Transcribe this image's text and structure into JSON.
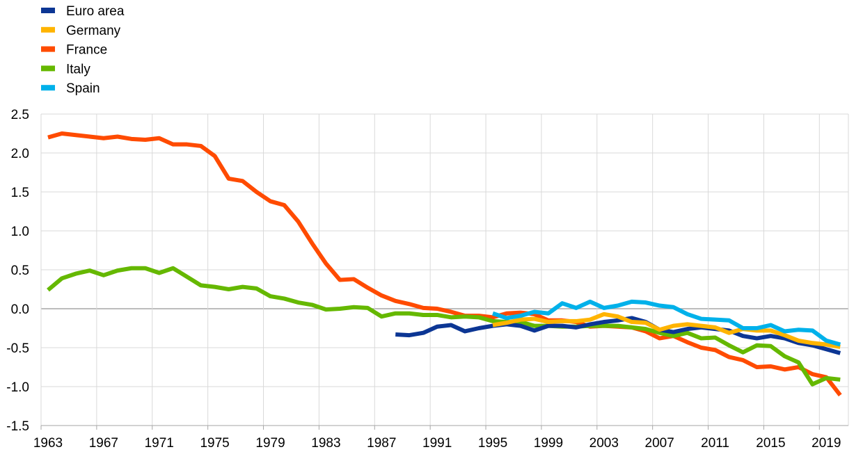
{
  "chart_data": {
    "type": "line",
    "title": "",
    "xlabel": "",
    "ylabel": "",
    "xlim": [
      1963,
      2020
    ],
    "ylim": [
      -1.5,
      2.5
    ],
    "x_ticks": [
      "1963",
      "1967",
      "1971",
      "1975",
      "1979",
      "1983",
      "1987",
      "1991",
      "1995",
      "1999",
      "2003",
      "2007",
      "2011",
      "2015",
      "2019"
    ],
    "y_ticks": [
      "2.5",
      "2.0",
      "1.5",
      "1.0",
      "0.5",
      "0.0",
      "-0.5",
      "-1.0",
      "-1.5"
    ],
    "grid": "vertical and horizontal",
    "legend_position": "top-left",
    "series": [
      {
        "name": "Euro area",
        "color": "#0c3694",
        "x": [
          1988,
          1989,
          1990,
          1991,
          1992,
          1993,
          1994,
          1995,
          1996,
          1997,
          1998,
          1999,
          2000,
          2001,
          2002,
          2003,
          2004,
          2005,
          2006,
          2007,
          2008,
          2009,
          2010,
          2011,
          2012,
          2013,
          2014,
          2015,
          2016,
          2017,
          2018,
          2019,
          2020
        ],
        "values": [
          -0.33,
          -0.34,
          -0.31,
          -0.23,
          -0.21,
          -0.29,
          -0.25,
          -0.22,
          -0.2,
          -0.22,
          -0.28,
          -0.22,
          -0.22,
          -0.24,
          -0.2,
          -0.17,
          -0.15,
          -0.12,
          -0.17,
          -0.27,
          -0.3,
          -0.26,
          -0.24,
          -0.26,
          -0.28,
          -0.35,
          -0.38,
          -0.35,
          -0.38,
          -0.44,
          -0.47,
          -0.52,
          -0.57
        ]
      },
      {
        "name": "Germany",
        "color": "#ffb400",
        "x": [
          1995,
          1996,
          1997,
          1998,
          1999,
          2000,
          2001,
          2002,
          2003,
          2004,
          2005,
          2006,
          2007,
          2008,
          2009,
          2010,
          2011,
          2012,
          2013,
          2014,
          2015,
          2016,
          2017,
          2018,
          2019,
          2020
        ],
        "values": [
          -0.21,
          -0.18,
          -0.14,
          -0.13,
          -0.17,
          -0.16,
          -0.16,
          -0.14,
          -0.07,
          -0.1,
          -0.17,
          -0.18,
          -0.27,
          -0.22,
          -0.2,
          -0.22,
          -0.24,
          -0.31,
          -0.26,
          -0.28,
          -0.28,
          -0.34,
          -0.41,
          -0.44,
          -0.46,
          -0.49
        ]
      },
      {
        "name": "France",
        "color": "#ff4b00",
        "x": [
          1963,
          1964,
          1965,
          1966,
          1967,
          1968,
          1969,
          1970,
          1971,
          1972,
          1973,
          1974,
          1975,
          1976,
          1977,
          1978,
          1979,
          1980,
          1981,
          1982,
          1983,
          1984,
          1985,
          1986,
          1987,
          1988,
          1989,
          1990,
          1991,
          1992,
          1993,
          1994,
          1995,
          1996,
          1997,
          1998,
          1999,
          2000,
          2001,
          2002,
          2003,
          2004,
          2005,
          2006,
          2007,
          2008,
          2009,
          2010,
          2011,
          2012,
          2013,
          2014,
          2015,
          2016,
          2017,
          2018,
          2019,
          2020
        ],
        "values": [
          2.2,
          2.25,
          2.23,
          2.21,
          2.19,
          2.21,
          2.18,
          2.17,
          2.19,
          2.11,
          2.11,
          2.09,
          1.96,
          1.67,
          1.64,
          1.5,
          1.38,
          1.33,
          1.12,
          0.84,
          0.58,
          0.37,
          0.38,
          0.27,
          0.17,
          0.1,
          0.06,
          0.01,
          0.0,
          -0.04,
          -0.09,
          -0.09,
          -0.11,
          -0.06,
          -0.05,
          -0.07,
          -0.15,
          -0.15,
          -0.17,
          -0.23,
          -0.22,
          -0.23,
          -0.24,
          -0.29,
          -0.38,
          -0.35,
          -0.43,
          -0.5,
          -0.53,
          -0.62,
          -0.66,
          -0.75,
          -0.74,
          -0.78,
          -0.75,
          -0.84,
          -0.88,
          -1.11
        ]
      },
      {
        "name": "Italy",
        "color": "#65b800",
        "x": [
          1963,
          1964,
          1965,
          1966,
          1967,
          1968,
          1969,
          1970,
          1971,
          1972,
          1973,
          1974,
          1975,
          1976,
          1977,
          1978,
          1979,
          1980,
          1981,
          1982,
          1983,
          1984,
          1985,
          1986,
          1987,
          1988,
          1989,
          1990,
          1991,
          1992,
          1993,
          1994,
          1995,
          1996,
          1997,
          1998,
          1999,
          2000,
          2001,
          2002,
          2003,
          2004,
          2005,
          2006,
          2007,
          2008,
          2009,
          2010,
          2011,
          2012,
          2013,
          2014,
          2015,
          2016,
          2017,
          2018,
          2019,
          2020
        ],
        "values": [
          0.24,
          0.39,
          0.45,
          0.49,
          0.43,
          0.49,
          0.52,
          0.52,
          0.46,
          0.52,
          0.41,
          0.3,
          0.28,
          0.25,
          0.28,
          0.26,
          0.16,
          0.13,
          0.08,
          0.05,
          -0.01,
          0.0,
          0.02,
          0.01,
          -0.1,
          -0.06,
          -0.06,
          -0.08,
          -0.08,
          -0.11,
          -0.1,
          -0.11,
          -0.16,
          -0.17,
          -0.17,
          -0.22,
          -0.22,
          -0.23,
          -0.23,
          -0.22,
          -0.22,
          -0.22,
          -0.24,
          -0.26,
          -0.31,
          -0.35,
          -0.31,
          -0.38,
          -0.37,
          -0.47,
          -0.56,
          -0.47,
          -0.48,
          -0.61,
          -0.69,
          -0.97,
          -0.89,
          -0.91
        ]
      },
      {
        "name": "Spain",
        "color": "#00b1ea",
        "x": [
          1995,
          1996,
          1997,
          1998,
          1999,
          2000,
          2001,
          2002,
          2003,
          2004,
          2005,
          2006,
          2007,
          2008,
          2009,
          2010,
          2011,
          2012,
          2013,
          2014,
          2015,
          2016,
          2017,
          2018,
          2019,
          2020
        ],
        "values": [
          -0.06,
          -0.12,
          -0.09,
          -0.04,
          -0.06,
          0.07,
          0.01,
          0.09,
          0.01,
          0.04,
          0.09,
          0.08,
          0.04,
          0.02,
          -0.07,
          -0.13,
          -0.14,
          -0.15,
          -0.25,
          -0.25,
          -0.21,
          -0.29,
          -0.27,
          -0.28,
          -0.41,
          -0.46
        ]
      }
    ]
  }
}
